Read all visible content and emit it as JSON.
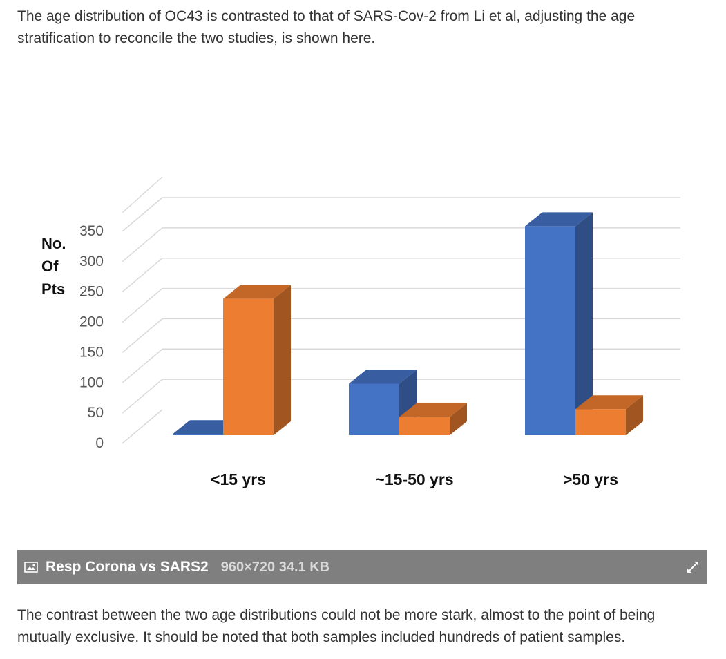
{
  "intro_text": "The age distribution of OC43 is contrasted to that of SARS-Cov-2 from Li et al, adjusting the age stratification to reconcile the two studies, is shown here.",
  "outro_text": "The contrast between the two age distributions could not be more stark, almost to the point of being mutually exclusive. It should be noted that both samples included hundreds of patient samples.",
  "caption": {
    "title": "Resp Corona vs SARS2",
    "dimensions": "960×720",
    "size": "34.1 KB",
    "image_icon": "image-icon",
    "expand_icon": "expand-icon"
  },
  "chart_data": {
    "type": "bar",
    "style": "3d-clustered-column",
    "categories": [
      "<15 yrs",
      "~15-50 yrs",
      ">50 yrs"
    ],
    "series": [
      {
        "color": "#4472c4",
        "values": [
          2,
          85,
          345
        ]
      },
      {
        "color": "#ed7d31",
        "values": [
          225,
          30,
          43
        ]
      }
    ],
    "ylabel_lines": [
      "No.",
      "Of",
      "Pts"
    ],
    "yticks": [
      0,
      50,
      100,
      150,
      200,
      250,
      300,
      350
    ],
    "ylim": [
      0,
      350
    ],
    "grid": true,
    "legend": "none"
  }
}
